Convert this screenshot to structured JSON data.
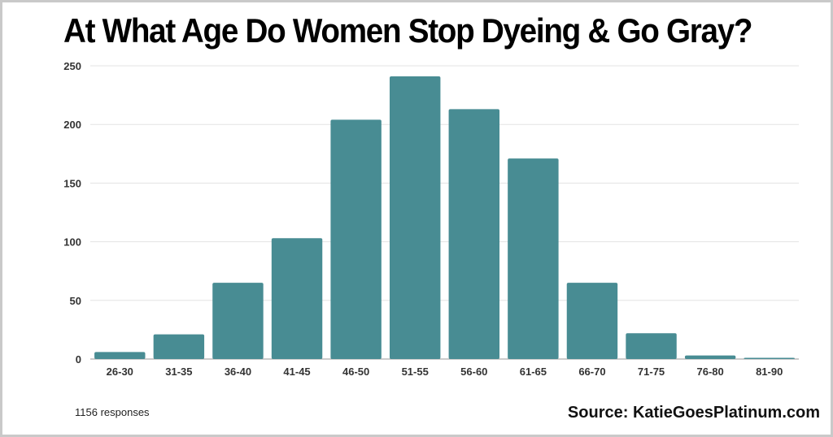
{
  "chart_data": {
    "type": "bar",
    "title": "At What Age Do Women Stop Dyeing & Go Gray?",
    "xlabel": "",
    "ylabel": "",
    "categories": [
      "26-30",
      "31-35",
      "36-40",
      "41-45",
      "46-50",
      "51-55",
      "56-60",
      "61-65",
      "66-70",
      "71-75",
      "76-80",
      "81-90"
    ],
    "values": [
      6,
      21,
      65,
      103,
      204,
      241,
      213,
      171,
      65,
      22,
      3,
      1
    ],
    "ylim": [
      0,
      250
    ],
    "yticks": [
      "0",
      "50",
      "100",
      "150",
      "200",
      "250"
    ],
    "grid": true,
    "legend": "none",
    "bar_color": "#488c93"
  },
  "footer": {
    "responses": "1156 responses",
    "source": "Source: KatieGoesPlatinum.com"
  }
}
